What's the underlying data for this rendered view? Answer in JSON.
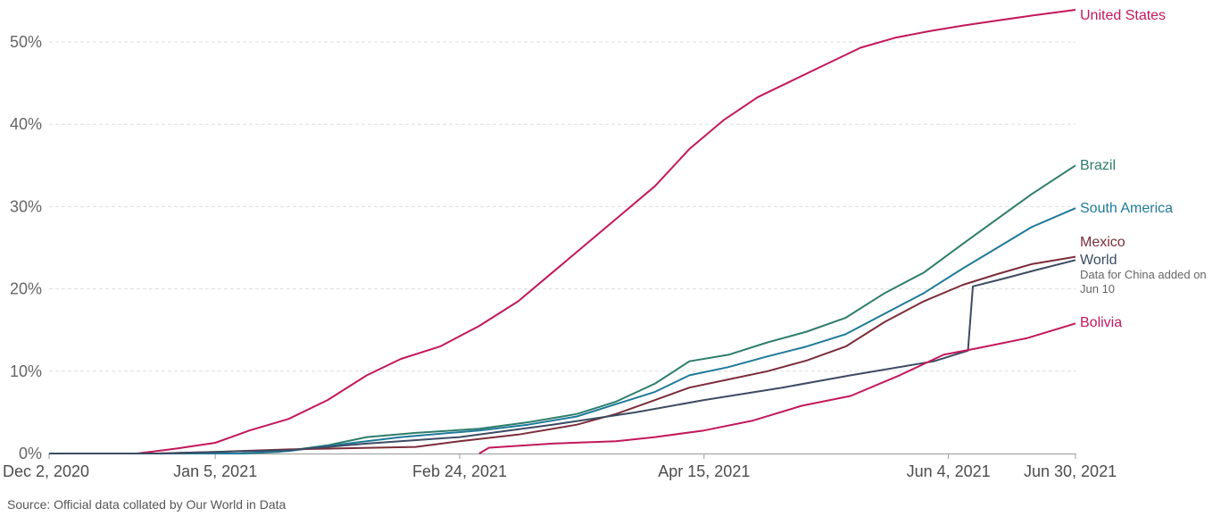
{
  "source": "Source: Official data collated by Our World in Data",
  "chart_data": {
    "type": "line",
    "xlim": [
      "2020-12-02",
      "2021-06-30"
    ],
    "ylim": [
      0,
      55
    ],
    "grid": "horizontal dashed",
    "y_ticks": [
      {
        "value": 0,
        "label": "0%"
      },
      {
        "value": 10,
        "label": "10%"
      },
      {
        "value": 20,
        "label": "20%"
      },
      {
        "value": 30,
        "label": "30%"
      },
      {
        "value": 40,
        "label": "40%"
      },
      {
        "value": 50,
        "label": "50%"
      }
    ],
    "x_ticks": [
      {
        "value": "2020-12-02",
        "label": "Dec 2, 2020"
      },
      {
        "value": "2021-01-05",
        "label": "Jan 5, 2021"
      },
      {
        "value": "2021-02-24",
        "label": "Feb 24, 2021"
      },
      {
        "value": "2021-04-15",
        "label": "Apr 15, 2021"
      },
      {
        "value": "2021-06-04",
        "label": "Jun 4, 2021"
      },
      {
        "value": "2021-06-30",
        "label": "Jun 30, 2021"
      }
    ],
    "series": [
      {
        "name": "United States",
        "color": "#c2185b",
        "points": [
          [
            "2020-12-02",
            0
          ],
          [
            "2020-12-20",
            0
          ],
          [
            "2020-12-28",
            0.6
          ],
          [
            "2021-01-05",
            1.3
          ],
          [
            "2021-01-12",
            2.8
          ],
          [
            "2021-01-20",
            4.2
          ],
          [
            "2021-01-28",
            6.5
          ],
          [
            "2021-02-05",
            9.5
          ],
          [
            "2021-02-12",
            11.5
          ],
          [
            "2021-02-20",
            13
          ],
          [
            "2021-02-28",
            15.5
          ],
          [
            "2021-03-08",
            18.5
          ],
          [
            "2021-03-15",
            22
          ],
          [
            "2021-03-22",
            25.5
          ],
          [
            "2021-03-29",
            29
          ],
          [
            "2021-04-05",
            32.5
          ],
          [
            "2021-04-12",
            37
          ],
          [
            "2021-04-19",
            40.5
          ],
          [
            "2021-04-26",
            43.3
          ],
          [
            "2021-05-03",
            45.3
          ],
          [
            "2021-05-10",
            47.3
          ],
          [
            "2021-05-17",
            49.3
          ],
          [
            "2021-05-24",
            50.5
          ],
          [
            "2021-05-31",
            51.3
          ],
          [
            "2021-06-07",
            52.0
          ],
          [
            "2021-06-14",
            52.6
          ],
          [
            "2021-06-21",
            53.2
          ],
          [
            "2021-06-30",
            53.9
          ]
        ]
      },
      {
        "name": "Brazil",
        "color": "#2e7d6b",
        "points": [
          [
            "2020-12-02",
            0
          ],
          [
            "2021-01-10",
            0
          ],
          [
            "2021-01-18",
            0.2
          ],
          [
            "2021-01-28",
            1.0
          ],
          [
            "2021-02-05",
            2.0
          ],
          [
            "2021-02-15",
            2.5
          ],
          [
            "2021-02-28",
            3.0
          ],
          [
            "2021-03-10",
            3.8
          ],
          [
            "2021-03-20",
            4.8
          ],
          [
            "2021-03-28",
            6.3
          ],
          [
            "2021-04-05",
            8.5
          ],
          [
            "2021-04-12",
            11.2
          ],
          [
            "2021-04-20",
            12.0
          ],
          [
            "2021-04-28",
            13.5
          ],
          [
            "2021-05-06",
            14.8
          ],
          [
            "2021-05-14",
            16.5
          ],
          [
            "2021-05-22",
            19.5
          ],
          [
            "2021-05-30",
            22.0
          ],
          [
            "2021-06-07",
            25.5
          ],
          [
            "2021-06-14",
            28.5
          ],
          [
            "2021-06-21",
            31.5
          ],
          [
            "2021-06-30",
            35.0
          ]
        ]
      },
      {
        "name": "South America",
        "color": "#1f7a99",
        "points": [
          [
            "2020-12-02",
            0
          ],
          [
            "2021-01-10",
            0
          ],
          [
            "2021-01-20",
            0.3
          ],
          [
            "2021-02-01",
            1.2
          ],
          [
            "2021-02-12",
            2.0
          ],
          [
            "2021-02-28",
            2.8
          ],
          [
            "2021-03-10",
            3.5
          ],
          [
            "2021-03-20",
            4.5
          ],
          [
            "2021-03-28",
            6.0
          ],
          [
            "2021-04-05",
            7.5
          ],
          [
            "2021-04-12",
            9.5
          ],
          [
            "2021-04-20",
            10.5
          ],
          [
            "2021-04-28",
            11.8
          ],
          [
            "2021-05-06",
            13.0
          ],
          [
            "2021-05-14",
            14.5
          ],
          [
            "2021-05-22",
            17.0
          ],
          [
            "2021-05-30",
            19.5
          ],
          [
            "2021-06-07",
            22.5
          ],
          [
            "2021-06-14",
            25.0
          ],
          [
            "2021-06-21",
            27.5
          ],
          [
            "2021-06-30",
            29.8
          ]
        ]
      },
      {
        "name": "Mexico",
        "color": "#7b2d3a",
        "points": [
          [
            "2020-12-02",
            0
          ],
          [
            "2020-12-24",
            0
          ],
          [
            "2021-01-05",
            0.2
          ],
          [
            "2021-01-20",
            0.5
          ],
          [
            "2021-02-15",
            0.8
          ],
          [
            "2021-02-24",
            1.5
          ],
          [
            "2021-03-08",
            2.3
          ],
          [
            "2021-03-20",
            3.5
          ],
          [
            "2021-03-28",
            4.8
          ],
          [
            "2021-04-05",
            6.5
          ],
          [
            "2021-04-12",
            8.0
          ],
          [
            "2021-04-20",
            9.0
          ],
          [
            "2021-04-28",
            10.0
          ],
          [
            "2021-05-06",
            11.3
          ],
          [
            "2021-05-14",
            13.0
          ],
          [
            "2021-05-22",
            16.0
          ],
          [
            "2021-05-30",
            18.5
          ],
          [
            "2021-06-07",
            20.5
          ],
          [
            "2021-06-14",
            21.8
          ],
          [
            "2021-06-21",
            23.0
          ],
          [
            "2021-06-30",
            23.9
          ]
        ]
      },
      {
        "name": "World",
        "color": "#3d4b63",
        "points": [
          [
            "2020-12-02",
            0
          ],
          [
            "2020-12-24",
            0
          ],
          [
            "2021-01-05",
            0.2
          ],
          [
            "2021-01-20",
            0.4
          ],
          [
            "2021-02-05",
            1.2
          ],
          [
            "2021-02-24",
            2.0
          ],
          [
            "2021-03-15",
            3.5
          ],
          [
            "2021-04-01",
            5.0
          ],
          [
            "2021-04-15",
            6.5
          ],
          [
            "2021-05-01",
            8.0
          ],
          [
            "2021-05-15",
            9.5
          ],
          [
            "2021-06-01",
            11.2
          ],
          [
            "2021-06-08",
            12.5
          ],
          [
            "2021-06-09",
            20.3
          ],
          [
            "2021-06-15",
            21.2
          ],
          [
            "2021-06-22",
            22.3
          ],
          [
            "2021-06-30",
            23.5
          ]
        ]
      },
      {
        "name": "Bolivia",
        "color": "#c2185b",
        "points": [
          [
            "2021-02-28",
            0
          ],
          [
            "2021-03-02",
            0.7
          ],
          [
            "2021-03-15",
            1.2
          ],
          [
            "2021-03-28",
            1.5
          ],
          [
            "2021-04-05",
            2.0
          ],
          [
            "2021-04-15",
            2.8
          ],
          [
            "2021-04-25",
            4.0
          ],
          [
            "2021-05-05",
            5.8
          ],
          [
            "2021-05-15",
            7.0
          ],
          [
            "2021-05-25",
            9.5
          ],
          [
            "2021-06-03",
            12.0
          ],
          [
            "2021-06-10",
            12.8
          ],
          [
            "2021-06-20",
            14.0
          ],
          [
            "2021-06-30",
            15.8
          ]
        ]
      }
    ],
    "annotation": {
      "series": "World",
      "lines": [
        "Data for China added on",
        "Jun 10"
      ]
    }
  }
}
